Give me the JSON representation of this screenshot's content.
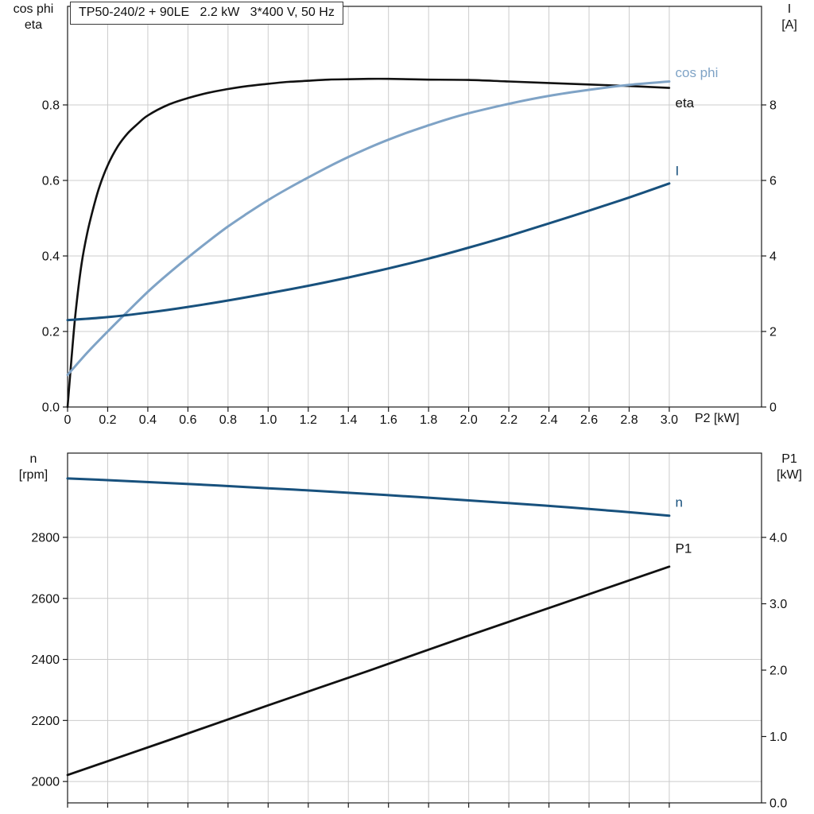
{
  "style": {
    "background": "#ffffff",
    "frame_color": "#1a1a1a",
    "grid_color": "#cccccc",
    "black": "#111111",
    "dark_blue": "#18517d",
    "light_blue": "#7fa3c6"
  },
  "chart_data": [
    {
      "type": "line",
      "title": "TP50-240/2 + 90LE   2.2 kW   3*400 V, 50 Hz",
      "grid": true,
      "x_axis": {
        "label": "P2 [kW]",
        "min": 0,
        "max": 3.46,
        "ticks": [
          0,
          0.2,
          0.4,
          0.6,
          0.8,
          1.0,
          1.2,
          1.4,
          1.6,
          1.8,
          2.0,
          2.2,
          2.4,
          2.6,
          2.8,
          3.0
        ],
        "tick_labels": [
          "0",
          "0.2",
          "0.4",
          "0.6",
          "0.8",
          "1.0",
          "1.2",
          "1.4",
          "1.6",
          "1.8",
          "2.0",
          "2.2",
          "2.4",
          "2.6",
          "2.8",
          "3.0"
        ]
      },
      "left_axis": {
        "label_line1": "cos phi",
        "label_line2": "eta",
        "min": 0,
        "max": 1.061,
        "ticks": [
          0,
          0.2,
          0.4,
          0.6,
          0.8
        ],
        "tick_labels": [
          "0.0",
          "0.2",
          "0.4",
          "0.6",
          "0.8"
        ]
      },
      "right_axis": {
        "label_line1": "I",
        "label_line2": "[A]",
        "min": 0,
        "max": 10.61,
        "ticks": [
          0,
          2,
          4,
          6,
          8
        ],
        "tick_labels": [
          "0",
          "2",
          "4",
          "6",
          "8"
        ]
      },
      "series": [
        {
          "name": "eta",
          "axis": "left",
          "color": "#111111",
          "width": 2.6,
          "label": {
            "text": "eta",
            "x": 3.03,
            "y": 0.805
          },
          "points": [
            [
              0,
              0
            ],
            [
              0.02,
              0.13
            ],
            [
              0.04,
              0.25
            ],
            [
              0.07,
              0.38
            ],
            [
              0.1,
              0.465
            ],
            [
              0.13,
              0.53
            ],
            [
              0.16,
              0.585
            ],
            [
              0.2,
              0.64
            ],
            [
              0.25,
              0.69
            ],
            [
              0.3,
              0.725
            ],
            [
              0.35,
              0.75
            ],
            [
              0.4,
              0.772
            ],
            [
              0.5,
              0.8
            ],
            [
              0.6,
              0.818
            ],
            [
              0.7,
              0.832
            ],
            [
              0.8,
              0.842
            ],
            [
              0.9,
              0.85
            ],
            [
              1.0,
              0.856
            ],
            [
              1.1,
              0.861
            ],
            [
              1.2,
              0.864
            ],
            [
              1.3,
              0.867
            ],
            [
              1.4,
              0.868
            ],
            [
              1.5,
              0.869
            ],
            [
              1.6,
              0.869
            ],
            [
              1.7,
              0.868
            ],
            [
              1.8,
              0.867
            ],
            [
              2.0,
              0.866
            ],
            [
              2.2,
              0.862
            ],
            [
              2.4,
              0.858
            ],
            [
              2.6,
              0.854
            ],
            [
              2.8,
              0.85
            ],
            [
              3.0,
              0.845
            ]
          ]
        },
        {
          "name": "cos phi",
          "axis": "left",
          "color": "#7fa3c6",
          "width": 3.0,
          "label": {
            "text": "cos phi",
            "x": 3.03,
            "y": 0.885
          },
          "points": [
            [
              0,
              0.085
            ],
            [
              0.1,
              0.145
            ],
            [
              0.2,
              0.2
            ],
            [
              0.3,
              0.253
            ],
            [
              0.4,
              0.305
            ],
            [
              0.5,
              0.352
            ],
            [
              0.6,
              0.396
            ],
            [
              0.7,
              0.438
            ],
            [
              0.8,
              0.478
            ],
            [
              0.9,
              0.514
            ],
            [
              1.0,
              0.548
            ],
            [
              1.1,
              0.579
            ],
            [
              1.2,
              0.608
            ],
            [
              1.3,
              0.636
            ],
            [
              1.4,
              0.662
            ],
            [
              1.5,
              0.686
            ],
            [
              1.6,
              0.708
            ],
            [
              1.7,
              0.728
            ],
            [
              1.8,
              0.746
            ],
            [
              1.9,
              0.763
            ],
            [
              2.0,
              0.778
            ],
            [
              2.2,
              0.803
            ],
            [
              2.4,
              0.824
            ],
            [
              2.6,
              0.84
            ],
            [
              2.8,
              0.853
            ],
            [
              3.0,
              0.862
            ]
          ]
        },
        {
          "name": "I",
          "axis": "right",
          "color": "#18517d",
          "width": 3.0,
          "label": {
            "text": "I",
            "x": 3.03,
            "y": 6.25
          },
          "points": [
            [
              0,
              2.3
            ],
            [
              0.2,
              2.38
            ],
            [
              0.4,
              2.5
            ],
            [
              0.6,
              2.65
            ],
            [
              0.8,
              2.82
            ],
            [
              1.0,
              3.01
            ],
            [
              1.2,
              3.21
            ],
            [
              1.4,
              3.43
            ],
            [
              1.6,
              3.67
            ],
            [
              1.8,
              3.93
            ],
            [
              2.0,
              4.22
            ],
            [
              2.2,
              4.53
            ],
            [
              2.4,
              4.86
            ],
            [
              2.6,
              5.2
            ],
            [
              2.8,
              5.55
            ],
            [
              3.0,
              5.92
            ]
          ]
        }
      ]
    },
    {
      "type": "line",
      "title": "",
      "grid": true,
      "x_axis": {
        "label": "",
        "min": 0,
        "max": 3.46,
        "ticks": [
          0,
          0.2,
          0.4,
          0.6,
          0.8,
          1.0,
          1.2,
          1.4,
          1.6,
          1.8,
          2.0,
          2.2,
          2.4,
          2.6,
          2.8,
          3.0
        ],
        "tick_labels": []
      },
      "left_axis": {
        "label_line1": "n",
        "label_line2": "[rpm]",
        "min": 1930,
        "max": 3076,
        "ticks": [
          2000,
          2200,
          2400,
          2600,
          2800
        ],
        "tick_labels": [
          "2000",
          "2200",
          "2400",
          "2600",
          "2800"
        ]
      },
      "right_axis": {
        "label_line1": "P1",
        "label_line2": "[kW]",
        "min": 0,
        "max": 5.27,
        "ticks": [
          0,
          1,
          2,
          3,
          4
        ],
        "tick_labels": [
          "0.0",
          "1.0",
          "2.0",
          "3.0",
          "4.0"
        ]
      },
      "series": [
        {
          "name": "n",
          "axis": "left",
          "color": "#18517d",
          "width": 3.0,
          "label": {
            "text": "n",
            "x": 3.03,
            "y": 2915
          },
          "points": [
            [
              0,
              2993
            ],
            [
              0.25,
              2986
            ],
            [
              0.5,
              2978
            ],
            [
              0.75,
              2970
            ],
            [
              1.0,
              2961
            ],
            [
              1.25,
              2952
            ],
            [
              1.5,
              2942
            ],
            [
              1.75,
              2932
            ],
            [
              2.0,
              2921
            ],
            [
              2.25,
              2910
            ],
            [
              2.5,
              2898
            ],
            [
              2.75,
              2885
            ],
            [
              3.0,
              2871
            ]
          ]
        },
        {
          "name": "P1",
          "axis": "right",
          "color": "#111111",
          "width": 2.8,
          "label": {
            "text": "P1",
            "x": 3.03,
            "y": 3.83
          },
          "points": [
            [
              0,
              0.42
            ],
            [
              0.5,
              0.94
            ],
            [
              1.0,
              1.47
            ],
            [
              1.5,
              1.99
            ],
            [
              2.0,
              2.52
            ],
            [
              2.5,
              3.04
            ],
            [
              3.0,
              3.56
            ]
          ]
        }
      ]
    }
  ]
}
